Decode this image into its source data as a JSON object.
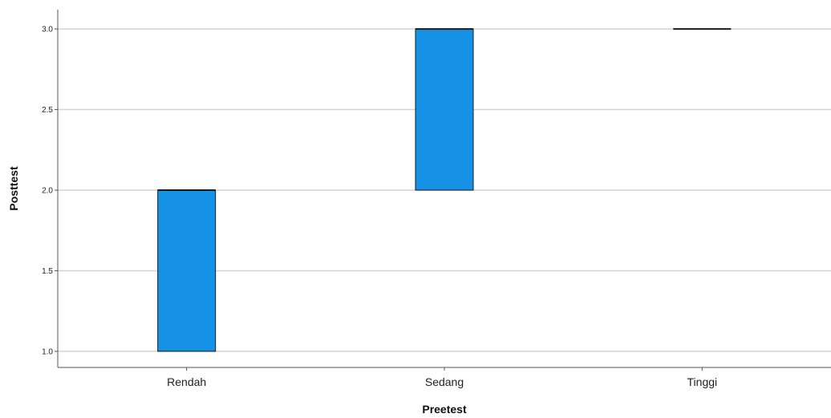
{
  "chart_data": {
    "type": "boxplot",
    "xlabel": "Preetest",
    "ylabel": "Posttest",
    "categories": [
      "Rendah",
      "Sedang",
      "Tinggi"
    ],
    "boxes": [
      {
        "category": "Rendah",
        "q1": 1.0,
        "median": 2.0,
        "q3": 2.0
      },
      {
        "category": "Sedang",
        "q1": 2.0,
        "median": 3.0,
        "q3": 3.0
      },
      {
        "category": "Tinggi",
        "q1": 3.0,
        "median": 3.0,
        "q3": 3.0
      }
    ],
    "ylim": [
      0.9,
      3.12
    ],
    "yticks": [
      "1.0",
      "1.5",
      "2.0",
      "2.5",
      "3.0"
    ],
    "grid": true,
    "box_color": "#1591e6"
  }
}
